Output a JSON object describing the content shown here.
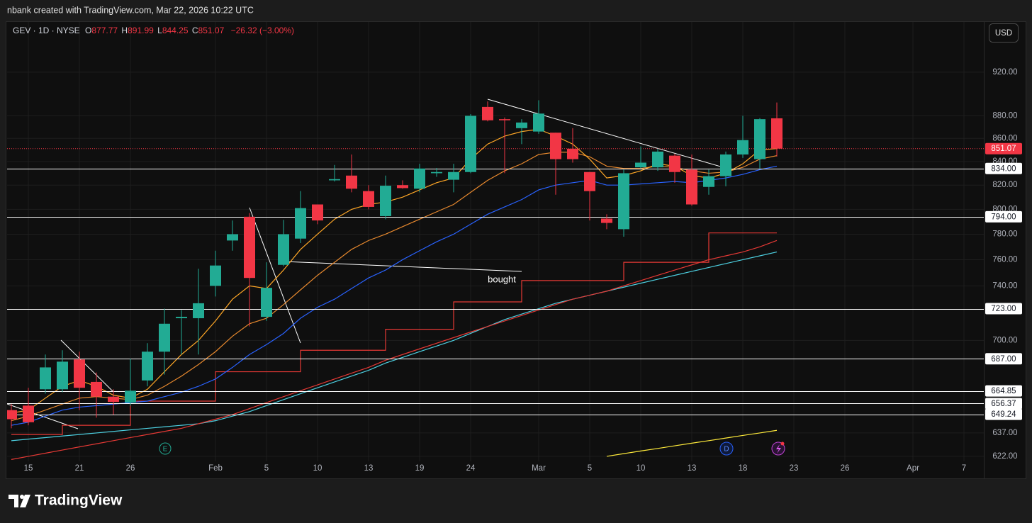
{
  "chart_data": {
    "type": "candlestick",
    "watermark": "nbank created with TradingView.com, Mar 22, 2026 10:22 UTC",
    "header": {
      "symbol": "GEV · 1D · NYSE",
      "o": "O",
      "h": "H",
      "l": "L",
      "c": "C",
      "change": "−26.32 (−3.00%)"
    },
    "currency": "USD",
    "brand": "TradingView",
    "annotation": "bought",
    "markers": [
      "E",
      "D"
    ],
    "log_scale": true,
    "grid": true,
    "up_color": "#22ab94",
    "down_color": "#f23645",
    "categories": [
      null,
      "15",
      null,
      null,
      "21",
      null,
      null,
      "26",
      null,
      null,
      null,
      null,
      "Feb",
      null,
      null,
      "5",
      null,
      null,
      "10",
      null,
      null,
      "13",
      null,
      null,
      "19",
      null,
      null,
      "24",
      null,
      null,
      null,
      "Mar",
      null,
      null,
      "5",
      null,
      null,
      "10",
      null,
      null,
      "13",
      null,
      null,
      "18",
      null,
      null,
      "23",
      null,
      null,
      "26",
      null,
      null,
      null,
      "Apr",
      null,
      null,
      "7",
      null
    ],
    "open": [
      652,
      655,
      666,
      666,
      686.5,
      671,
      661,
      657,
      672,
      692,
      716,
      716,
      740,
      775,
      794,
      717,
      756,
      776.5,
      804,
      824,
      828,
      815,
      794.5,
      820,
      817,
      830,
      824.5,
      831,
      888,
      877,
      869,
      866,
      865,
      851,
      831,
      792.5,
      784,
      835,
      835,
      845,
      833,
      818.5,
      827.5,
      846,
      842,
      877.77,
      null,
      null,
      null,
      null,
      null,
      null,
      null,
      null,
      null,
      null,
      null,
      null
    ],
    "high": [
      656,
      667,
      690,
      693,
      692,
      677.5,
      666,
      687,
      698,
      723,
      722,
      753,
      767,
      791,
      797,
      758,
      791.5,
      815,
      804,
      837,
      846,
      820,
      828,
      824,
      838,
      834.5,
      838,
      881.5,
      893,
      878.5,
      877,
      894,
      865,
      869,
      831,
      796,
      833,
      853,
      851,
      846.5,
      846,
      833,
      848.5,
      880,
      878,
      891.99,
      null,
      null,
      null,
      null,
      null,
      null,
      null,
      null,
      null,
      null,
      null,
      null
    ],
    "low": [
      640,
      642,
      663,
      664,
      652,
      647,
      649,
      655,
      668,
      676,
      690,
      690,
      732,
      767,
      710,
      714,
      755,
      773,
      788,
      823,
      814,
      800,
      792,
      817,
      814,
      827,
      814,
      830,
      875,
      830,
      855,
      864,
      812,
      839,
      791,
      784,
      778,
      834,
      832,
      822,
      803,
      812,
      819,
      843,
      834,
      844.25,
      null,
      null,
      null,
      null,
      null,
      null,
      null,
      null,
      null,
      null,
      null,
      null
    ],
    "close": [
      646,
      644,
      681,
      685,
      667,
      661,
      657.5,
      665,
      692,
      712,
      717,
      727,
      755.5,
      780,
      746,
      738.5,
      780,
      801,
      791,
      825,
      817,
      802,
      819.5,
      817.5,
      834,
      831,
      831,
      880,
      876,
      876,
      874,
      882,
      842,
      842,
      815,
      789,
      830,
      839,
      848.5,
      831,
      804,
      827.5,
      846,
      858.5,
      877,
      851.07,
      null,
      null,
      null,
      null,
      null,
      null,
      null,
      null,
      null,
      null,
      null,
      null
    ],
    "lines": [
      {
        "color": "#4dd0e1",
        "values": [
          632,
          633,
          634,
          635,
          636,
          637,
          638,
          639,
          640,
          641,
          642,
          643,
          645,
          648,
          651,
          655,
          659,
          663,
          667,
          671,
          675,
          679,
          684,
          688,
          692,
          696,
          700,
          705,
          710,
          715,
          719,
          723,
          727,
          730,
          733,
          736,
          739,
          742,
          745,
          748,
          751,
          754,
          757,
          760,
          763,
          766,
          null,
          null,
          null,
          null,
          null,
          null,
          null,
          null,
          null,
          null,
          null,
          null
        ]
      },
      {
        "color": "#e53935",
        "values": [
          620,
          622,
          624,
          626,
          628,
          630,
          632,
          634,
          636,
          638,
          640,
          643,
          646,
          649,
          653,
          657,
          661,
          665,
          669,
          673,
          677,
          681,
          686,
          690,
          694,
          698,
          702,
          706,
          710,
          714,
          718,
          722,
          726,
          730,
          733,
          736,
          740,
          744,
          748,
          752,
          756,
          760,
          763,
          766,
          770,
          775,
          null,
          null,
          null,
          null,
          null,
          null,
          null,
          null,
          null,
          null,
          null,
          null
        ]
      },
      {
        "color": "#e53935",
        "step": true,
        "values": [
          636,
          636,
          636,
          642,
          642,
          642,
          642,
          658,
          658,
          658,
          658,
          658,
          678,
          678,
          678,
          678,
          678,
          693,
          693,
          693,
          693,
          693,
          708,
          708,
          708,
          708,
          728,
          728,
          728,
          728,
          744,
          744,
          744,
          744,
          744,
          744,
          758,
          758,
          758,
          758,
          758,
          781,
          781,
          781,
          781,
          781,
          null,
          null,
          null,
          null,
          null,
          null,
          null,
          null,
          null,
          null,
          null,
          null
        ]
      },
      {
        "color": "#2962ff",
        "values": [
          642,
          644,
          648,
          652,
          654,
          655,
          656,
          657,
          658,
          661,
          664,
          668,
          673,
          681,
          690,
          697,
          705,
          716,
          724,
          730,
          738,
          746,
          752,
          760,
          767,
          774,
          780,
          788,
          796,
          802,
          808,
          816,
          820,
          822,
          824,
          820,
          820,
          821,
          822,
          823,
          822,
          824,
          826,
          829,
          833,
          836,
          null,
          null,
          null,
          null,
          null,
          null,
          null,
          null,
          null,
          null,
          null,
          null
        ]
      },
      {
        "color": "#e8892e",
        "values": [
          645,
          648,
          652,
          656,
          660,
          661,
          660,
          659,
          662,
          668,
          675,
          683,
          692,
          703,
          712,
          716,
          726,
          737,
          748,
          758,
          768,
          775,
          780,
          786,
          792,
          798,
          804,
          814,
          824,
          832,
          838,
          846,
          848,
          848,
          844,
          836,
          834,
          834,
          836,
          835,
          832,
          830,
          831,
          835,
          842,
          845,
          null,
          null,
          null,
          null,
          null,
          null,
          null,
          null,
          null,
          null,
          null,
          null
        ]
      },
      {
        "color": "#ffa726",
        "values": [
          650,
          652,
          660,
          668,
          672,
          668,
          662,
          660,
          666,
          678,
          690,
          700,
          714,
          730,
          740,
          738,
          752,
          768,
          780,
          792,
          800,
          804,
          806,
          810,
          816,
          822,
          826,
          842,
          855,
          862,
          866,
          868,
          862,
          855,
          842,
          826,
          828,
          832,
          838,
          836,
          828,
          826,
          830,
          838,
          850,
          851,
          null,
          null,
          null,
          null,
          null,
          null,
          null,
          null,
          null,
          null,
          null,
          null
        ]
      },
      {
        "color": "#ffeb3b",
        "values": [
          null,
          null,
          null,
          null,
          null,
          null,
          null,
          null,
          null,
          null,
          null,
          null,
          null,
          null,
          null,
          null,
          null,
          null,
          null,
          null,
          null,
          null,
          null,
          null,
          null,
          null,
          null,
          null,
          null,
          null,
          null,
          null,
          null,
          null,
          null,
          622,
          623.7,
          625.4,
          627,
          628.7,
          630.4,
          632,
          633.7,
          635.4,
          637,
          638.7,
          null,
          null,
          null,
          null,
          null,
          null,
          null,
          null,
          null,
          null,
          null,
          null
        ]
      }
    ],
    "levels": [
      {
        "value": 834,
        "label": "834.00"
      },
      {
        "value": 794,
        "label": "794.00"
      },
      {
        "value": 723,
        "label": "723.00"
      },
      {
        "value": 687,
        "label": "687.00"
      },
      {
        "value": 664.85,
        "label": "664.85"
      },
      {
        "value": 656.37,
        "label": "656.37"
      },
      {
        "value": 649.24,
        "label": "649.24"
      }
    ],
    "ylim": [
      608.2,
      969
    ],
    "yticks": [
      {
        "value": 920,
        "label": "920.00"
      },
      {
        "value": 880,
        "label": "880.00"
      },
      {
        "value": 860,
        "label": "860.00"
      },
      {
        "value": 840,
        "label": "840.00"
      },
      {
        "value": 820,
        "label": "820.00"
      },
      {
        "value": 800,
        "label": "800.00"
      },
      {
        "value": 780,
        "label": "780.00"
      },
      {
        "value": 760,
        "label": "760.00"
      },
      {
        "value": 740,
        "label": "740.00"
      },
      {
        "value": 700,
        "label": "700.00"
      },
      {
        "value": 637,
        "label": "637.00"
      },
      {
        "value": 622,
        "label": "622.00"
      }
    ]
  }
}
